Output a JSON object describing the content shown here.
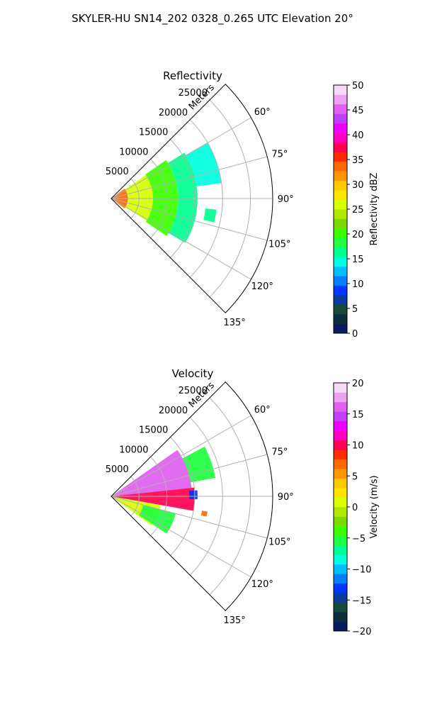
{
  "figure": {
    "title": "SKYLER-HU  SN14_202  0328_0.265 UTC Elevation 20°"
  },
  "chart_data": [
    {
      "type": "heatmap",
      "projection": "polar-sector",
      "title": "Reflectivity",
      "radial_label": "Meters",
      "range_ticks": [
        5000,
        10000,
        15000,
        20000,
        25000
      ],
      "range_tick_labels": [
        "5000",
        "10000",
        "15000",
        "20000",
        "25000"
      ],
      "range_max": 29000,
      "azimuth_ticks": [
        60,
        75,
        90,
        105,
        120,
        135
      ],
      "azimuth_tick_labels": [
        "60°",
        "75°",
        "90°",
        "105°",
        "120°",
        "135°"
      ],
      "azimuth_range": [
        45,
        135
      ],
      "grid": true,
      "colorbar": {
        "label": "Reflectivity dBZ",
        "range": [
          0,
          50
        ],
        "ticks": [
          0,
          5,
          10,
          15,
          20,
          25,
          30,
          35,
          40,
          45,
          50
        ],
        "tick_labels": [
          "0",
          "5",
          "10",
          "15",
          "20",
          "25",
          "30",
          "35",
          "40",
          "45",
          "50"
        ],
        "colors": [
          "#0b1a5e",
          "#0a2e3e",
          "#154a3a",
          "#0a3a9a",
          "#0035ff",
          "#0080ff",
          "#00c0ff",
          "#00ffe0",
          "#00ff90",
          "#20ff40",
          "#3cff00",
          "#7dd800",
          "#b0e800",
          "#d8ff00",
          "#ffe400",
          "#ffc800",
          "#ff9800",
          "#ff6800",
          "#ff2a00",
          "#ff0050",
          "#ff00c0",
          "#ee00ff",
          "#c040ff",
          "#e060f0",
          "#f0a0f0",
          "#f8d8f8"
        ]
      },
      "echo_regions": [
        {
          "az_range": [
            54,
            126
          ],
          "r_range": [
            0,
            3000
          ],
          "value": 33
        },
        {
          "az_range": [
            56,
            122
          ],
          "r_range": [
            3000,
            7500
          ],
          "value": 26
        },
        {
          "az_range": [
            55,
            124
          ],
          "r_range": [
            7500,
            12000
          ],
          "value": 21
        },
        {
          "az_range": [
            58,
            121
          ],
          "r_range": [
            12000,
            15500
          ],
          "value": 16
        },
        {
          "az_range": [
            60,
            82
          ],
          "r_range": [
            15500,
            20000
          ],
          "value": 15
        },
        {
          "az_range": [
            96,
            103
          ],
          "r_range": [
            17000,
            19000
          ],
          "value": 17
        }
      ]
    },
    {
      "type": "heatmap",
      "projection": "polar-sector",
      "title": "Velocity",
      "radial_label": "Meters",
      "range_ticks": [
        5000,
        10000,
        15000,
        20000,
        25000
      ],
      "range_tick_labels": [
        "5000",
        "10000",
        "15000",
        "20000",
        "25000"
      ],
      "range_max": 29000,
      "azimuth_ticks": [
        60,
        75,
        90,
        105,
        120,
        135
      ],
      "azimuth_tick_labels": [
        "60°",
        "75°",
        "90°",
        "105°",
        "120°",
        "135°"
      ],
      "azimuth_range": [
        45,
        135
      ],
      "grid": true,
      "colorbar": {
        "label": "Velocity (m/s)",
        "range": [
          -20,
          20
        ],
        "ticks": [
          -20,
          -15,
          -10,
          -5,
          0,
          5,
          10,
          15,
          20
        ],
        "tick_labels": [
          "−20",
          "−15",
          "−10",
          "−5",
          "0",
          "5",
          "10",
          "15",
          "20"
        ],
        "colors": [
          "#0b1a5e",
          "#0a2e3e",
          "#154a3a",
          "#0a3a9a",
          "#0035ff",
          "#0080ff",
          "#00c0ff",
          "#00ffe0",
          "#00ff90",
          "#20ff40",
          "#3cff00",
          "#7dd800",
          "#b0e800",
          "#d8ff00",
          "#ffe400",
          "#ffc800",
          "#ff9800",
          "#ff6800",
          "#ff2a00",
          "#ff0050",
          "#ff00c0",
          "#ee00ff",
          "#c040ff",
          "#e060f0",
          "#f0a0f0",
          "#f8d8f8"
        ]
      },
      "echo_regions": [
        {
          "az_range": [
            55,
            84
          ],
          "r_range": [
            0,
            14500
          ],
          "value": 16
        },
        {
          "az_range": [
            84,
            100
          ],
          "r_range": [
            0,
            15000
          ],
          "value": 10
        },
        {
          "az_range": [
            100,
            126
          ],
          "r_range": [
            0,
            9000
          ],
          "value": 0
        },
        {
          "az_range": [
            105,
            124
          ],
          "r_range": [
            6000,
            12000
          ],
          "value": -5
        },
        {
          "az_range": [
            62,
            80
          ],
          "r_range": [
            14500,
            19000
          ],
          "value": -6
        },
        {
          "az_range": [
            86,
            92
          ],
          "r_range": [
            14000,
            15500
          ],
          "value": -13
        },
        {
          "az_range": [
            99,
            102
          ],
          "r_range": [
            16500,
            17500
          ],
          "value": 7
        }
      ]
    }
  ]
}
